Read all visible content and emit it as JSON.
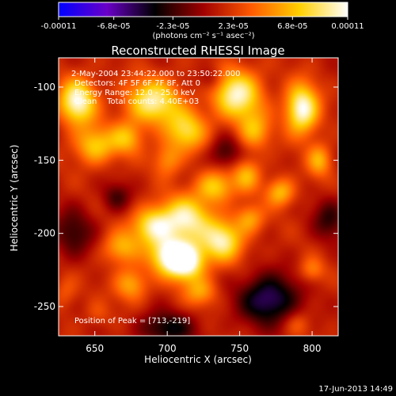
{
  "chart_data": {
    "type": "heatmap",
    "title": "Reconstructed RHESSI Image",
    "colorbar": {
      "ticks": [
        "-0.00011",
        "-6.8e-05",
        "-2.3e-05",
        "2.3e-05",
        "6.8e-05",
        "0.00011"
      ],
      "tick_values": [
        -0.00011,
        -6.8e-05,
        -2.3e-05,
        2.3e-05,
        6.8e-05,
        0.00011
      ],
      "range": [
        -0.00011,
        0.00011
      ],
      "units_text": "(photons cm⁻² s⁻¹ asec⁻²)",
      "colormap": [
        "#0000ff",
        "#6a00c8",
        "#000000",
        "#a00000",
        "#ff5a00",
        "#ffd000",
        "#ffffff"
      ]
    },
    "xlabel": "Heliocentric X (arcsec)",
    "ylabel": "Heliocentric Y (arcsec)",
    "xlim": [
      625,
      818
    ],
    "ylim": [
      -270,
      -80
    ],
    "xticks": [
      650,
      700,
      750,
      800
    ],
    "xtick_labels": [
      "650",
      "700",
      "750",
      "800"
    ],
    "yticks": [
      -100,
      -150,
      -200,
      -250
    ],
    "ytick_labels": [
      "-100",
      "-150",
      "-200",
      "-250"
    ],
    "annotations": {
      "time_range": "2-May-2004 23:44:22.000 to 23:50:22.000",
      "detectors": "Detectors: 4F 5F 6F 7F 8F, Att 0",
      "energy": "Energy Range: 12.0 - 25.0 keV",
      "algorithm": "Clean    Total counts: 4.40E+03",
      "peak": "Position of Peak = [713,-219]"
    },
    "peak": {
      "x": 713,
      "y": -219
    },
    "sources": [
      {
        "x": 638,
        "y": -110,
        "sx": 9,
        "sy": 11,
        "a": 0.85
      },
      {
        "x": 650,
        "y": -140,
        "sx": 10,
        "sy": 9,
        "a": 0.55
      },
      {
        "x": 690,
        "y": -110,
        "sx": 13,
        "sy": 11,
        "a": 0.75
      },
      {
        "x": 672,
        "y": -135,
        "sx": 8,
        "sy": 8,
        "a": 0.45
      },
      {
        "x": 713,
        "y": -130,
        "sx": 10,
        "sy": 10,
        "a": 0.6
      },
      {
        "x": 700,
        "y": -150,
        "sx": 7,
        "sy": 8,
        "a": 0.35
      },
      {
        "x": 748,
        "y": -105,
        "sx": 12,
        "sy": 12,
        "a": 0.8
      },
      {
        "x": 760,
        "y": -130,
        "sx": 8,
        "sy": 9,
        "a": 0.45
      },
      {
        "x": 793,
        "y": -115,
        "sx": 8,
        "sy": 12,
        "a": 0.9
      },
      {
        "x": 755,
        "y": -160,
        "sx": 7,
        "sy": 8,
        "a": 0.45
      },
      {
        "x": 733,
        "y": -168,
        "sx": 9,
        "sy": 8,
        "a": 0.55
      },
      {
        "x": 713,
        "y": -190,
        "sx": 12,
        "sy": 11,
        "a": 0.75
      },
      {
        "x": 690,
        "y": -195,
        "sx": 10,
        "sy": 9,
        "a": 0.7
      },
      {
        "x": 700,
        "y": -215,
        "sx": 9,
        "sy": 9,
        "a": 0.7
      },
      {
        "x": 713,
        "y": -219,
        "sx": 9,
        "sy": 9,
        "a": 1.0
      },
      {
        "x": 738,
        "y": -205,
        "sx": 10,
        "sy": 10,
        "a": 0.75
      },
      {
        "x": 668,
        "y": -210,
        "sx": 9,
        "sy": 8,
        "a": 0.45
      },
      {
        "x": 675,
        "y": -235,
        "sx": 8,
        "sy": 8,
        "a": 0.45
      },
      {
        "x": 757,
        "y": -190,
        "sx": 7,
        "sy": 7,
        "a": 0.4
      },
      {
        "x": 723,
        "y": -240,
        "sx": 8,
        "sy": 7,
        "a": 0.4
      },
      {
        "x": 778,
        "y": -172,
        "sx": 7,
        "sy": 7,
        "a": 0.5
      },
      {
        "x": 805,
        "y": -150,
        "sx": 6,
        "sy": 8,
        "a": 0.45
      },
      {
        "x": 800,
        "y": -225,
        "sx": 6,
        "sy": 6,
        "a": 0.3
      },
      {
        "x": 630,
        "y": -240,
        "sx": 6,
        "sy": 8,
        "a": 0.2
      },
      {
        "x": 790,
        "y": -262,
        "sx": 6,
        "sy": 6,
        "a": 0.2
      },
      {
        "x": 652,
        "y": -255,
        "sx": 6,
        "sy": 6,
        "a": 0.15
      }
    ],
    "negatives": [
      {
        "x": 770,
        "y": -245,
        "sx": 14,
        "sy": 12,
        "a": 0.65
      },
      {
        "x": 700,
        "y": -265,
        "sx": 14,
        "sy": 8,
        "a": 0.45
      },
      {
        "x": 635,
        "y": -200,
        "sx": 10,
        "sy": 12,
        "a": 0.35
      },
      {
        "x": 740,
        "y": -145,
        "sx": 8,
        "sy": 8,
        "a": 0.35
      },
      {
        "x": 812,
        "y": -190,
        "sx": 8,
        "sy": 10,
        "a": 0.35
      },
      {
        "x": 665,
        "y": -175,
        "sx": 7,
        "sy": 7,
        "a": 0.3
      },
      {
        "x": 730,
        "y": -95,
        "sx": 6,
        "sy": 6,
        "a": 0.25
      }
    ],
    "background": 0.12
  },
  "footer": {
    "date": "17-Jun-2013 14:49"
  }
}
